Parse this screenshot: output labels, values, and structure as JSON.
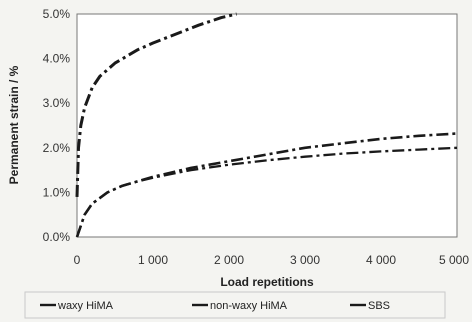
{
  "chart_data": {
    "type": "line",
    "xlabel": "Load repetitions",
    "ylabel": "Permanent strain / %",
    "xlim": [
      0,
      5000
    ],
    "ylim": [
      0,
      5
    ],
    "x_ticks": [
      "0",
      "1 000",
      "2 000",
      "3 000",
      "4 000",
      "5 000"
    ],
    "y_ticks": [
      "0.0%",
      "1.0%",
      "2.0%",
      "3.0%",
      "4.0%",
      "5.0%"
    ],
    "grid": false,
    "legend_position": "bottom",
    "series": [
      {
        "name": "waxy HiMA",
        "x": [
          0,
          20,
          50,
          100,
          200,
          300,
          500,
          800,
          1000,
          1300,
          1600,
          1900,
          2100
        ],
        "y": [
          0.9,
          2.0,
          2.5,
          2.9,
          3.35,
          3.6,
          3.9,
          4.2,
          4.35,
          4.55,
          4.75,
          4.92,
          5.0
        ]
      },
      {
        "name": "non-waxy HiMA",
        "x": [
          0,
          100,
          200,
          400,
          600,
          800,
          1000,
          1500,
          2000,
          2500,
          3000,
          3500,
          4000,
          4500,
          5000
        ],
        "y": [
          0,
          0.5,
          0.75,
          1.0,
          1.15,
          1.25,
          1.35,
          1.55,
          1.7,
          1.85,
          2.0,
          2.1,
          2.2,
          2.27,
          2.32
        ]
      },
      {
        "name": "SBS",
        "x": [
          0,
          100,
          200,
          400,
          600,
          800,
          1000,
          1500,
          2000,
          2500,
          3000,
          3500,
          4000,
          4500,
          5000
        ],
        "y": [
          0,
          0.5,
          0.75,
          1.0,
          1.15,
          1.25,
          1.33,
          1.5,
          1.62,
          1.72,
          1.8,
          1.87,
          1.92,
          1.96,
          2.0
        ]
      }
    ]
  },
  "colors": {
    "background": "#f4f4f1",
    "plot_background": "#ffffff",
    "line": "#1a1a1a",
    "axis": "#555555"
  }
}
